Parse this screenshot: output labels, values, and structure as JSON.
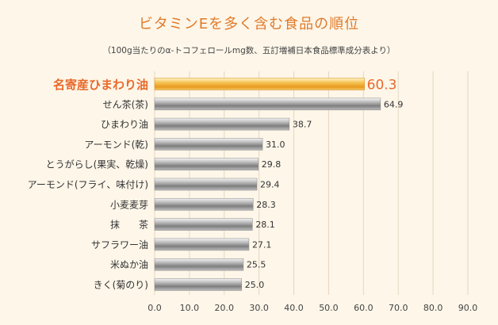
{
  "chart_data": {
    "type": "bar",
    "orientation": "horizontal",
    "title": "ビタミンEを多く含む食品の順位",
    "subtitle": "（100g当たりのα-トコフェロールmg数、五訂増補日本食品標準成分表より）",
    "categories": [
      "名寄産ひまわり油",
      "せん茶(茶)",
      "ひまわり油",
      "アーモンド(乾)",
      "とうがらし(果実、乾燥)",
      "アーモンド(フライ、味付け)",
      "小麦麦芽",
      "抹　　茶",
      "サフラワー油",
      "米ぬか油",
      "きく(菊のり)"
    ],
    "values": [
      60.3,
      64.9,
      38.7,
      31.0,
      29.8,
      29.4,
      28.3,
      28.1,
      27.1,
      25.5,
      25.0
    ],
    "value_labels": [
      "60.3",
      "64.9",
      "38.7",
      "31.0",
      "29.8",
      "29.4",
      "28.3",
      "28.1",
      "27.1",
      "25.5",
      "25.0"
    ],
    "highlight_index": 0,
    "xlim": [
      0,
      90
    ],
    "x_ticks": [
      "0.0",
      "10.0",
      "20.0",
      "30.0",
      "40.0",
      "50.0",
      "60.0",
      "70.0",
      "80.0",
      "90.0"
    ],
    "grid": true,
    "legend": "none",
    "colors": {
      "highlight_bar": "#f0b23a",
      "highlight_text": "#e8692a",
      "bar": "#9a9a9a",
      "grid": "#e6d7c2",
      "background": "#fdf6e9",
      "title": "#e07a2a"
    }
  }
}
